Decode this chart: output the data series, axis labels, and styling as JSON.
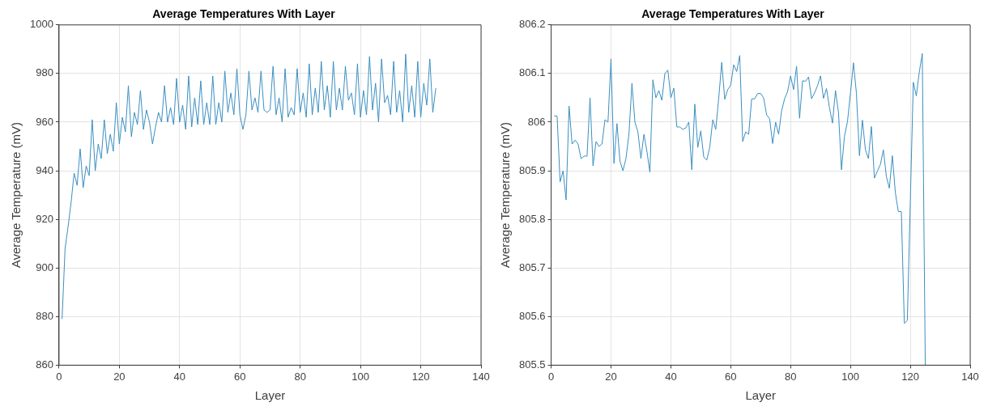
{
  "chart_data": [
    {
      "type": "line",
      "title": "Average Temperatures With Layer",
      "xlabel": "Layer",
      "ylabel": "Average Temperature (mV)",
      "xlim": [
        0,
        140
      ],
      "xticks": [
        0,
        20,
        40,
        60,
        80,
        100,
        120,
        140
      ],
      "ylim": [
        860,
        1000
      ],
      "yticks": [
        860,
        880,
        900,
        920,
        940,
        960,
        980,
        1000
      ],
      "grid": true,
      "legend": false,
      "x": [
        1,
        2,
        3,
        4,
        5,
        6,
        7,
        8,
        9,
        10,
        11,
        12,
        13,
        14,
        15,
        16,
        17,
        18,
        19,
        20,
        21,
        22,
        23,
        24,
        25,
        26,
        27,
        28,
        29,
        30,
        31,
        32,
        33,
        34,
        35,
        36,
        37,
        38,
        39,
        40,
        41,
        42,
        43,
        44,
        45,
        46,
        47,
        48,
        49,
        50,
        51,
        52,
        53,
        54,
        55,
        56,
        57,
        58,
        59,
        60,
        61,
        62,
        63,
        64,
        65,
        66,
        67,
        68,
        69,
        70,
        71,
        72,
        73,
        74,
        75,
        76,
        77,
        78,
        79,
        80,
        81,
        82,
        83,
        84,
        85,
        86,
        87,
        88,
        89,
        90,
        91,
        92,
        93,
        94,
        95,
        96,
        97,
        98,
        99,
        100,
        101,
        102,
        103,
        104,
        105,
        106,
        107,
        108,
        109,
        110,
        111,
        112,
        113,
        114,
        115,
        116,
        117,
        118,
        119,
        120,
        121,
        122,
        123,
        124,
        125
      ],
      "series": [
        {
          "color": "#3a8fc0",
          "values": [
            879,
            908,
            917,
            927,
            939,
            934,
            949,
            933,
            942,
            938,
            961,
            940,
            951,
            945,
            961,
            947,
            955,
            948,
            968,
            951,
            962,
            956,
            975,
            954,
            964,
            959,
            973,
            957,
            965,
            960,
            951,
            958,
            964,
            960,
            975,
            960,
            966,
            959,
            978,
            960,
            967,
            957,
            979,
            958,
            970,
            959,
            977,
            959,
            968,
            959,
            979,
            959,
            968,
            960,
            981,
            964,
            972,
            963,
            982,
            963,
            957,
            963,
            981,
            965,
            970,
            964,
            981,
            965,
            964,
            965,
            983,
            963,
            970,
            960,
            982,
            962,
            966,
            963,
            982,
            964,
            972,
            962,
            984,
            963,
            974,
            964,
            985,
            965,
            975,
            962,
            985,
            965,
            974,
            965,
            983,
            969,
            972,
            963,
            984,
            962,
            973,
            963,
            987,
            965,
            976,
            960,
            986,
            968,
            971,
            963,
            985,
            964,
            973,
            960,
            988,
            964,
            975,
            962,
            985,
            962,
            976,
            967,
            986,
            964,
            974
          ]
        }
      ]
    },
    {
      "type": "line",
      "title": "Average Temperatures With Layer",
      "xlabel": "Layer",
      "ylabel": "Average Temperature (mV)",
      "xlim": [
        0,
        140
      ],
      "xticks": [
        0,
        20,
        40,
        60,
        80,
        100,
        120,
        140
      ],
      "ylim": [
        805.5,
        806.2
      ],
      "yticks": [
        805.5,
        805.6,
        805.7,
        805.8,
        805.9,
        806,
        806.1,
        806.2
      ],
      "grid": true,
      "legend": false,
      "x": [
        1,
        2,
        3,
        4,
        5,
        6,
        7,
        8,
        9,
        10,
        11,
        12,
        13,
        14,
        15,
        16,
        17,
        18,
        19,
        20,
        21,
        22,
        23,
        24,
        25,
        26,
        27,
        28,
        29,
        30,
        31,
        32,
        33,
        34,
        35,
        36,
        37,
        38,
        39,
        40,
        41,
        42,
        43,
        44,
        45,
        46,
        47,
        48,
        49,
        50,
        51,
        52,
        53,
        54,
        55,
        56,
        57,
        58,
        59,
        60,
        61,
        62,
        63,
        64,
        65,
        66,
        67,
        68,
        69,
        70,
        71,
        72,
        73,
        74,
        75,
        76,
        77,
        78,
        79,
        80,
        81,
        82,
        83,
        84,
        85,
        86,
        87,
        88,
        89,
        90,
        91,
        92,
        93,
        94,
        95,
        96,
        97,
        98,
        99,
        100,
        101,
        102,
        103,
        104,
        105,
        106,
        107,
        108,
        109,
        110,
        111,
        112,
        113,
        114,
        115,
        116,
        117,
        118,
        119,
        120,
        121,
        122,
        123,
        124,
        125
      ],
      "series": [
        {
          "color": "#3a8fc0",
          "values": [
            806.013,
            806.012,
            805.877,
            805.9,
            805.84,
            806.033,
            805.955,
            805.963,
            805.955,
            805.925,
            805.93,
            805.93,
            806.05,
            805.91,
            805.96,
            805.95,
            805.955,
            806.005,
            806.0,
            806.13,
            805.915,
            805.997,
            805.92,
            805.9,
            805.925,
            805.975,
            806.08,
            806.0,
            805.98,
            805.925,
            805.975,
            805.94,
            805.897,
            806.087,
            806.05,
            806.065,
            806.045,
            806.1,
            806.107,
            806.05,
            806.07,
            805.99,
            805.99,
            805.985,
            805.988,
            806.0,
            805.902,
            806.037,
            805.948,
            805.982,
            805.928,
            805.922,
            805.948,
            806.005,
            805.985,
            806.05,
            806.123,
            806.047,
            806.067,
            806.076,
            806.118,
            806.104,
            806.137,
            805.96,
            805.98,
            805.975,
            806.048,
            806.048,
            806.059,
            806.059,
            806.05,
            806.015,
            806.007,
            805.956,
            806.0,
            805.975,
            806.023,
            806.048,
            806.063,
            806.095,
            806.067,
            806.115,
            806.008,
            806.085,
            806.084,
            806.093,
            806.048,
            806.06,
            806.075,
            806.095,
            806.049,
            806.069,
            806.029,
            805.998,
            806.065,
            806.02,
            805.902,
            805.971,
            806.001,
            806.059,
            806.122,
            806.059,
            805.931,
            806.004,
            805.943,
            805.925,
            805.991,
            805.885,
            805.899,
            805.913,
            805.943,
            805.888,
            805.864,
            805.931,
            805.855,
            805.816,
            805.816,
            805.586,
            805.592,
            805.837,
            806.082,
            806.054,
            806.103,
            806.141,
            805.5
          ]
        }
      ]
    }
  ]
}
